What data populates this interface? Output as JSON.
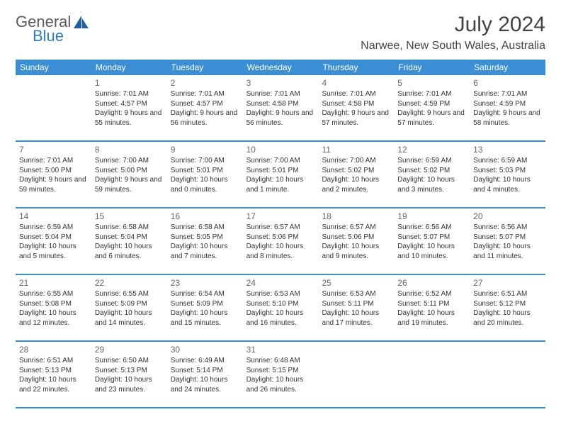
{
  "brand": {
    "word1": "General",
    "word2": "Blue",
    "sail_color": "#1e5fa8"
  },
  "title": "July 2024",
  "location": "Narwee, New South Wales, Australia",
  "header_bg": "#3b8fd4",
  "header_fg": "#ffffff",
  "divider_color": "#3b8fd4",
  "weekdays": [
    "Sunday",
    "Monday",
    "Tuesday",
    "Wednesday",
    "Thursday",
    "Friday",
    "Saturday"
  ],
  "weeks": [
    [
      null,
      {
        "n": "1",
        "sr": "7:01 AM",
        "ss": "4:57 PM",
        "dl": "9 hours and 55 minutes."
      },
      {
        "n": "2",
        "sr": "7:01 AM",
        "ss": "4:57 PM",
        "dl": "9 hours and 56 minutes."
      },
      {
        "n": "3",
        "sr": "7:01 AM",
        "ss": "4:58 PM",
        "dl": "9 hours and 56 minutes."
      },
      {
        "n": "4",
        "sr": "7:01 AM",
        "ss": "4:58 PM",
        "dl": "9 hours and 57 minutes."
      },
      {
        "n": "5",
        "sr": "7:01 AM",
        "ss": "4:59 PM",
        "dl": "9 hours and 57 minutes."
      },
      {
        "n": "6",
        "sr": "7:01 AM",
        "ss": "4:59 PM",
        "dl": "9 hours and 58 minutes."
      }
    ],
    [
      {
        "n": "7",
        "sr": "7:01 AM",
        "ss": "5:00 PM",
        "dl": "9 hours and 59 minutes."
      },
      {
        "n": "8",
        "sr": "7:00 AM",
        "ss": "5:00 PM",
        "dl": "9 hours and 59 minutes."
      },
      {
        "n": "9",
        "sr": "7:00 AM",
        "ss": "5:01 PM",
        "dl": "10 hours and 0 minutes."
      },
      {
        "n": "10",
        "sr": "7:00 AM",
        "ss": "5:01 PM",
        "dl": "10 hours and 1 minute."
      },
      {
        "n": "11",
        "sr": "7:00 AM",
        "ss": "5:02 PM",
        "dl": "10 hours and 2 minutes."
      },
      {
        "n": "12",
        "sr": "6:59 AM",
        "ss": "5:02 PM",
        "dl": "10 hours and 3 minutes."
      },
      {
        "n": "13",
        "sr": "6:59 AM",
        "ss": "5:03 PM",
        "dl": "10 hours and 4 minutes."
      }
    ],
    [
      {
        "n": "14",
        "sr": "6:59 AM",
        "ss": "5:04 PM",
        "dl": "10 hours and 5 minutes."
      },
      {
        "n": "15",
        "sr": "6:58 AM",
        "ss": "5:04 PM",
        "dl": "10 hours and 6 minutes."
      },
      {
        "n": "16",
        "sr": "6:58 AM",
        "ss": "5:05 PM",
        "dl": "10 hours and 7 minutes."
      },
      {
        "n": "17",
        "sr": "6:57 AM",
        "ss": "5:06 PM",
        "dl": "10 hours and 8 minutes."
      },
      {
        "n": "18",
        "sr": "6:57 AM",
        "ss": "5:06 PM",
        "dl": "10 hours and 9 minutes."
      },
      {
        "n": "19",
        "sr": "6:56 AM",
        "ss": "5:07 PM",
        "dl": "10 hours and 10 minutes."
      },
      {
        "n": "20",
        "sr": "6:56 AM",
        "ss": "5:07 PM",
        "dl": "10 hours and 11 minutes."
      }
    ],
    [
      {
        "n": "21",
        "sr": "6:55 AM",
        "ss": "5:08 PM",
        "dl": "10 hours and 12 minutes."
      },
      {
        "n": "22",
        "sr": "6:55 AM",
        "ss": "5:09 PM",
        "dl": "10 hours and 14 minutes."
      },
      {
        "n": "23",
        "sr": "6:54 AM",
        "ss": "5:09 PM",
        "dl": "10 hours and 15 minutes."
      },
      {
        "n": "24",
        "sr": "6:53 AM",
        "ss": "5:10 PM",
        "dl": "10 hours and 16 minutes."
      },
      {
        "n": "25",
        "sr": "6:53 AM",
        "ss": "5:11 PM",
        "dl": "10 hours and 17 minutes."
      },
      {
        "n": "26",
        "sr": "6:52 AM",
        "ss": "5:11 PM",
        "dl": "10 hours and 19 minutes."
      },
      {
        "n": "27",
        "sr": "6:51 AM",
        "ss": "5:12 PM",
        "dl": "10 hours and 20 minutes."
      }
    ],
    [
      {
        "n": "28",
        "sr": "6:51 AM",
        "ss": "5:13 PM",
        "dl": "10 hours and 22 minutes."
      },
      {
        "n": "29",
        "sr": "6:50 AM",
        "ss": "5:13 PM",
        "dl": "10 hours and 23 minutes."
      },
      {
        "n": "30",
        "sr": "6:49 AM",
        "ss": "5:14 PM",
        "dl": "10 hours and 24 minutes."
      },
      {
        "n": "31",
        "sr": "6:48 AM",
        "ss": "5:15 PM",
        "dl": "10 hours and 26 minutes."
      },
      null,
      null,
      null
    ]
  ],
  "labels": {
    "sunrise": "Sunrise:",
    "sunset": "Sunset:",
    "daylight": "Daylight:"
  }
}
